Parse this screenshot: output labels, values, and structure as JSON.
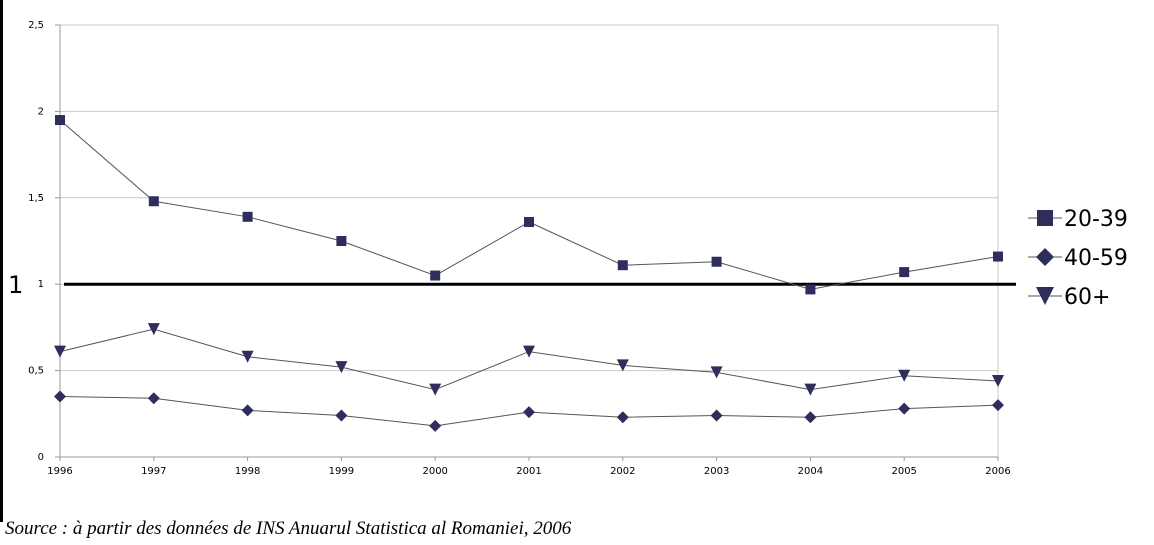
{
  "chart_data": {
    "type": "line",
    "title": "",
    "xlabel": "",
    "ylabel": "",
    "x": [
      "1996",
      "1997",
      "1998",
      "1999",
      "2000",
      "2001",
      "2002",
      "2003",
      "2004",
      "2005",
      "2006"
    ],
    "ylim": [
      0,
      2.5
    ],
    "y_ticks": [
      "0",
      "0,5",
      "1",
      "1,5",
      "2",
      "2,5"
    ],
    "grid": true,
    "legend_position": "right",
    "series": [
      {
        "name": "20-39",
        "marker": "square",
        "values": [
          1.95,
          1.48,
          1.39,
          1.25,
          1.05,
          1.36,
          1.11,
          1.13,
          0.97,
          1.07,
          1.16
        ]
      },
      {
        "name": "40-59",
        "marker": "diamond",
        "values": [
          0.35,
          0.34,
          0.27,
          0.24,
          0.18,
          0.26,
          0.23,
          0.24,
          0.23,
          0.28,
          0.3
        ]
      },
      {
        "name": "60+",
        "marker": "triangle-down",
        "values": [
          0.61,
          0.74,
          0.58,
          0.52,
          0.39,
          0.61,
          0.53,
          0.49,
          0.39,
          0.47,
          0.44
        ]
      }
    ],
    "reference_line": {
      "value": 1,
      "label": "1"
    },
    "line_color": "#555555",
    "marker_color": "#2e2e5c"
  },
  "caption": "Source : à partir des données de INS Anuarul Statistica al Romaniei, 2006"
}
